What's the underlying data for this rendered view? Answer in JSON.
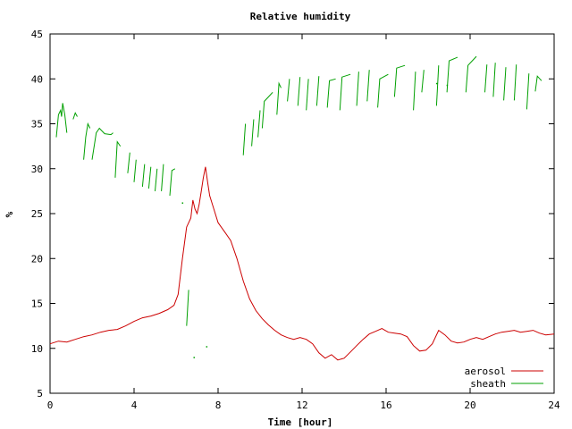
{
  "chart_data": {
    "type": "line",
    "title": "Relative humidity",
    "xlabel": "Time [hour]",
    "ylabel": "%",
    "xlim": [
      0,
      24
    ],
    "ylim": [
      5,
      45
    ],
    "xticks": [
      "0",
      "4",
      "8",
      "12",
      "16",
      "20",
      "24"
    ],
    "yticks": [
      "5",
      "10",
      "15",
      "20",
      "25",
      "30",
      "35",
      "40",
      "45"
    ],
    "legend_position": "bottom-right",
    "grid": false,
    "series": [
      {
        "name": "aerosol",
        "color": "#cc0000",
        "style": "continuous",
        "points": [
          [
            0.0,
            10.5
          ],
          [
            0.4,
            10.8
          ],
          [
            0.8,
            10.7
          ],
          [
            1.2,
            11.0
          ],
          [
            1.6,
            11.3
          ],
          [
            2.0,
            11.5
          ],
          [
            2.4,
            11.8
          ],
          [
            2.8,
            12.0
          ],
          [
            3.2,
            12.1
          ],
          [
            3.6,
            12.5
          ],
          [
            4.0,
            13.0
          ],
          [
            4.4,
            13.4
          ],
          [
            4.8,
            13.6
          ],
          [
            5.2,
            13.9
          ],
          [
            5.6,
            14.3
          ],
          [
            5.9,
            14.8
          ],
          [
            6.1,
            16.0
          ],
          [
            6.3,
            20.0
          ],
          [
            6.5,
            23.5
          ],
          [
            6.7,
            24.5
          ],
          [
            6.8,
            26.5
          ],
          [
            6.9,
            25.5
          ],
          [
            7.0,
            25.0
          ],
          [
            7.1,
            26.0
          ],
          [
            7.2,
            27.5
          ],
          [
            7.3,
            29.0
          ],
          [
            7.4,
            30.2
          ],
          [
            7.5,
            28.5
          ],
          [
            7.6,
            27.0
          ],
          [
            7.8,
            25.5
          ],
          [
            8.0,
            24.0
          ],
          [
            8.3,
            23.0
          ],
          [
            8.6,
            22.0
          ],
          [
            8.9,
            20.0
          ],
          [
            9.2,
            17.5
          ],
          [
            9.5,
            15.5
          ],
          [
            9.8,
            14.2
          ],
          [
            10.1,
            13.3
          ],
          [
            10.4,
            12.6
          ],
          [
            10.7,
            12.0
          ],
          [
            11.0,
            11.5
          ],
          [
            11.3,
            11.2
          ],
          [
            11.6,
            11.0
          ],
          [
            11.9,
            11.2
          ],
          [
            12.2,
            11.0
          ],
          [
            12.5,
            10.5
          ],
          [
            12.8,
            9.5
          ],
          [
            13.1,
            8.9
          ],
          [
            13.4,
            9.3
          ],
          [
            13.7,
            8.7
          ],
          [
            14.0,
            8.9
          ],
          [
            14.3,
            9.6
          ],
          [
            14.6,
            10.3
          ],
          [
            14.9,
            11.0
          ],
          [
            15.2,
            11.6
          ],
          [
            15.5,
            11.9
          ],
          [
            15.8,
            12.2
          ],
          [
            16.1,
            11.8
          ],
          [
            16.4,
            11.7
          ],
          [
            16.7,
            11.6
          ],
          [
            17.0,
            11.3
          ],
          [
            17.3,
            10.3
          ],
          [
            17.6,
            9.7
          ],
          [
            17.9,
            9.8
          ],
          [
            18.2,
            10.5
          ],
          [
            18.5,
            12.0
          ],
          [
            18.8,
            11.5
          ],
          [
            19.1,
            10.8
          ],
          [
            19.4,
            10.6
          ],
          [
            19.7,
            10.7
          ],
          [
            20.0,
            11.0
          ],
          [
            20.3,
            11.2
          ],
          [
            20.6,
            11.0
          ],
          [
            20.9,
            11.3
          ],
          [
            21.2,
            11.6
          ],
          [
            21.5,
            11.8
          ],
          [
            21.8,
            11.9
          ],
          [
            22.1,
            12.0
          ],
          [
            22.4,
            11.8
          ],
          [
            22.7,
            11.9
          ],
          [
            23.0,
            12.0
          ],
          [
            23.3,
            11.7
          ],
          [
            23.6,
            11.5
          ],
          [
            24.0,
            11.6
          ]
        ]
      },
      {
        "name": "sheath",
        "color": "#00a000",
        "style": "segmented",
        "segments": [
          [
            [
              0.3,
              33.5
            ],
            [
              0.4,
              36.0
            ],
            [
              0.5,
              36.5
            ],
            [
              0.55,
              35.8
            ],
            [
              0.6,
              37.3
            ],
            [
              0.7,
              36.0
            ],
            [
              0.8,
              34.0
            ]
          ],
          [
            [
              1.1,
              35.5
            ],
            [
              1.2,
              36.2
            ],
            [
              1.3,
              35.8
            ]
          ],
          [
            [
              1.6,
              31.0
            ],
            [
              1.7,
              33.5
            ],
            [
              1.8,
              35.0
            ],
            [
              1.9,
              34.5
            ]
          ],
          [
            [
              2.0,
              31.0
            ],
            [
              2.2,
              34.0
            ],
            [
              2.35,
              34.5
            ],
            [
              2.6,
              33.9
            ],
            [
              2.9,
              33.8
            ],
            [
              3.0,
              34.0
            ]
          ],
          [
            [
              3.1,
              29.0
            ],
            [
              3.2,
              33.0
            ],
            [
              3.35,
              32.5
            ]
          ],
          [
            [
              3.7,
              29.5
            ],
            [
              3.8,
              31.8
            ]
          ],
          [
            [
              4.0,
              28.5
            ],
            [
              4.1,
              31.0
            ]
          ],
          [
            [
              4.4,
              28.0
            ],
            [
              4.5,
              30.5
            ]
          ],
          [
            [
              4.7,
              27.8
            ],
            [
              4.8,
              30.2
            ]
          ],
          [
            [
              5.0,
              27.5
            ],
            [
              5.1,
              30.0
            ]
          ],
          [
            [
              5.3,
              27.5
            ],
            [
              5.4,
              30.5
            ]
          ],
          [
            [
              5.7,
              27.0
            ],
            [
              5.8,
              29.8
            ],
            [
              5.95,
              30.0
            ]
          ],
          [
            [
              6.5,
              12.5
            ],
            [
              6.6,
              16.5
            ]
          ],
          [
            [
              9.2,
              31.5
            ],
            [
              9.3,
              35.0
            ]
          ],
          [
            [
              9.6,
              32.5
            ],
            [
              9.7,
              35.5
            ]
          ],
          [
            [
              9.9,
              33.5
            ],
            [
              10.0,
              36.5
            ]
          ],
          [
            [
              10.1,
              34.5
            ],
            [
              10.2,
              37.5
            ],
            [
              10.4,
              38.0
            ],
            [
              10.6,
              38.5
            ]
          ],
          [
            [
              10.8,
              36.0
            ],
            [
              10.9,
              39.5
            ],
            [
              11.0,
              39.0
            ]
          ],
          [
            [
              11.3,
              37.5
            ],
            [
              11.4,
              40.0
            ]
          ],
          [
            [
              11.8,
              37.0
            ],
            [
              11.9,
              40.2
            ]
          ],
          [
            [
              12.2,
              36.5
            ],
            [
              12.3,
              40.0
            ]
          ],
          [
            [
              12.7,
              37.0
            ],
            [
              12.8,
              40.3
            ]
          ],
          [
            [
              13.2,
              36.8
            ],
            [
              13.3,
              39.8
            ],
            [
              13.6,
              40.0
            ]
          ],
          [
            [
              13.8,
              36.5
            ],
            [
              13.9,
              40.2
            ],
            [
              14.3,
              40.5
            ]
          ],
          [
            [
              14.6,
              37.0
            ],
            [
              14.7,
              40.8
            ]
          ],
          [
            [
              15.1,
              37.5
            ],
            [
              15.2,
              41.0
            ]
          ],
          [
            [
              15.6,
              36.8
            ],
            [
              15.7,
              40.0
            ],
            [
              16.1,
              40.5
            ]
          ],
          [
            [
              16.4,
              38.0
            ],
            [
              16.5,
              41.2
            ],
            [
              16.9,
              41.5
            ]
          ],
          [
            [
              17.3,
              36.5
            ],
            [
              17.4,
              40.8
            ]
          ],
          [
            [
              17.7,
              38.5
            ],
            [
              17.8,
              41.0
            ]
          ],
          [
            [
              18.4,
              37.0
            ],
            [
              18.5,
              41.5
            ]
          ],
          [
            [
              18.9,
              38.5
            ],
            [
              19.0,
              42.0
            ],
            [
              19.4,
              42.4
            ]
          ],
          [
            [
              19.8,
              38.5
            ],
            [
              19.9,
              41.5
            ],
            [
              20.3,
              42.5
            ]
          ],
          [
            [
              20.7,
              38.5
            ],
            [
              20.8,
              41.6
            ]
          ],
          [
            [
              21.1,
              38.0
            ],
            [
              21.2,
              41.8
            ]
          ],
          [
            [
              21.6,
              37.6
            ],
            [
              21.7,
              41.3
            ]
          ],
          [
            [
              22.1,
              37.6
            ],
            [
              22.2,
              41.6
            ]
          ],
          [
            [
              22.7,
              36.6
            ],
            [
              22.8,
              40.6
            ]
          ],
          [
            [
              23.1,
              38.6
            ],
            [
              23.2,
              40.3
            ],
            [
              23.4,
              39.8
            ]
          ]
        ],
        "dots": [
          [
            6.3,
            26.2
          ],
          [
            6.85,
            9.0
          ],
          [
            7.45,
            10.2
          ],
          [
            18.4,
            39.5
          ],
          [
            18.9,
            39.3
          ]
        ]
      }
    ]
  }
}
